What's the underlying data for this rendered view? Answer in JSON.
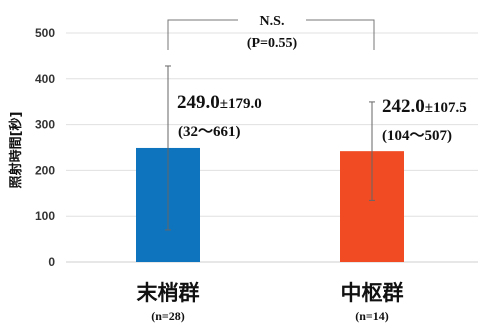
{
  "chart_data": {
    "type": "bar",
    "ylabel": "照射時間[秒]",
    "ylim": [
      0,
      500
    ],
    "yticks": [
      "0",
      "100",
      "200",
      "300",
      "400",
      "500"
    ],
    "grid": true,
    "categories": [
      "末梢群",
      "中枢群"
    ],
    "category_n": [
      "(n=28)",
      "(n=14)"
    ],
    "colors": [
      "#0e74be",
      "#f04b23"
    ],
    "values": [
      249.0,
      242.0
    ],
    "sd": [
      179.0,
      107.5
    ],
    "annotations": [
      {
        "mean": "249.0",
        "sd": "±179.0",
        "range": "(32〜661)"
      },
      {
        "mean": "242.0",
        "sd": "±107.5",
        "range": "(104〜507)"
      }
    ],
    "significance": {
      "label": "N.S.",
      "pvalue": "(P=0.55)"
    }
  }
}
